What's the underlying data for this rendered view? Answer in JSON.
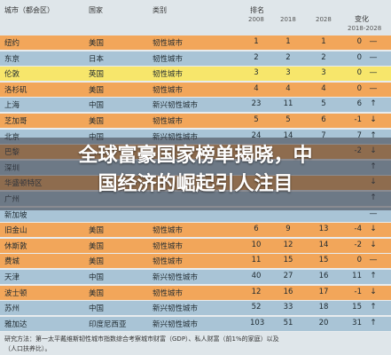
{
  "header": {
    "city": "城市（都会区）",
    "country": "国家",
    "type": "类别",
    "rank": "排名",
    "y2008": "2008",
    "y2018": "2018",
    "y2028": "2028",
    "change": "变化",
    "change_range": "2018-2028"
  },
  "colors": {
    "orange": "#f2a65a",
    "blue": "#a9c4d6",
    "yellow": "#f7e66b",
    "dark": "#555555"
  },
  "rows": [
    {
      "city": "纽约",
      "country": "美国",
      "type": "韧性城市",
      "r2008": "1",
      "r2018": "1",
      "r2028": "1",
      "chg": "0",
      "arrow": "—",
      "bg": "orange"
    },
    {
      "city": "东京",
      "country": "日本",
      "type": "韧性城市",
      "r2008": "2",
      "r2018": "2",
      "r2028": "2",
      "chg": "0",
      "arrow": "—",
      "bg": "blue"
    },
    {
      "city": "伦敦",
      "country": "英国",
      "type": "韧性城市",
      "r2008": "3",
      "r2018": "3",
      "r2028": "3",
      "chg": "0",
      "arrow": "—",
      "bg": "yellow"
    },
    {
      "city": "洛杉矶",
      "country": "美国",
      "type": "韧性城市",
      "r2008": "4",
      "r2018": "4",
      "r2028": "4",
      "chg": "0",
      "arrow": "—",
      "bg": "orange"
    },
    {
      "city": "上海",
      "country": "中国",
      "type": "新兴韧性城市",
      "r2008": "23",
      "r2018": "11",
      "r2028": "5",
      "chg": "6",
      "arrow": "↑",
      "bg": "blue"
    },
    {
      "city": "芝加哥",
      "country": "美国",
      "type": "韧性城市",
      "r2008": "5",
      "r2018": "5",
      "r2028": "6",
      "chg": "-1",
      "arrow": "↓",
      "bg": "orange"
    },
    {
      "city": "北京",
      "country": "中国",
      "type": "新兴韧性城市",
      "r2008": "24",
      "r2018": "14",
      "r2028": "7",
      "chg": "7",
      "arrow": "↑",
      "bg": "blue"
    },
    {
      "city": "巴黎",
      "country": "",
      "type": "",
      "r2008": "",
      "r2018": "",
      "r2028": "",
      "chg": "-2",
      "arrow": "↓",
      "bg": "orange"
    },
    {
      "city": "深圳",
      "country": "",
      "type": "",
      "r2008": "",
      "r2018": "",
      "r2028": "",
      "chg": "",
      "arrow": "↑",
      "bg": "blue"
    },
    {
      "city": "华盛顿特区",
      "country": "",
      "type": "",
      "r2008": "",
      "r2018": "",
      "r2028": "",
      "chg": "",
      "arrow": "↓",
      "bg": "orange"
    },
    {
      "city": "广州",
      "country": "",
      "type": "",
      "r2008": "",
      "r2018": "",
      "r2028": "",
      "chg": "",
      "arrow": "↑",
      "bg": "blue"
    },
    {
      "city": "新加坡",
      "country": "",
      "type": "",
      "r2008": "",
      "r2018": "",
      "r2028": "",
      "chg": "",
      "arrow": "—",
      "bg": "blue"
    },
    {
      "city": "旧金山",
      "country": "美国",
      "type": "韧性城市",
      "r2008": "6",
      "r2018": "9",
      "r2028": "13",
      "chg": "-4",
      "arrow": "↓",
      "bg": "orange"
    },
    {
      "city": "休斯敦",
      "country": "美国",
      "type": "韧性城市",
      "r2008": "10",
      "r2018": "12",
      "r2028": "14",
      "chg": "-2",
      "arrow": "↓",
      "bg": "orange"
    },
    {
      "city": "费城",
      "country": "美国",
      "type": "韧性城市",
      "r2008": "11",
      "r2018": "15",
      "r2028": "15",
      "chg": "0",
      "arrow": "—",
      "bg": "orange"
    },
    {
      "city": "天津",
      "country": "中国",
      "type": "新兴韧性城市",
      "r2008": "40",
      "r2018": "27",
      "r2028": "16",
      "chg": "11",
      "arrow": "↑",
      "bg": "blue"
    },
    {
      "city": "波士顿",
      "country": "美国",
      "type": "韧性城市",
      "r2008": "12",
      "r2018": "16",
      "r2028": "17",
      "chg": "-1",
      "arrow": "↓",
      "bg": "orange"
    },
    {
      "city": "苏州",
      "country": "中国",
      "type": "新兴韧性城市",
      "r2008": "52",
      "r2018": "33",
      "r2028": "18",
      "chg": "15",
      "arrow": "↑",
      "bg": "blue"
    },
    {
      "city": "雅加达",
      "country": "印度尼西亚",
      "type": "新兴韧性城市",
      "r2008": "103",
      "r2018": "51",
      "r2028": "20",
      "chg": "31",
      "arrow": "↑",
      "bg": "blue"
    }
  ],
  "headline": {
    "line1": "全球富豪国家榜单揭晓，中",
    "line2": "国经济的崛起引人注目"
  },
  "footer": {
    "text1": "研究方法：第一太平戴维斯韧性城市指数综合考察城市财富（GDP）、私人财富（前1%的家庭）以及",
    "text2": "（人口扶养比）。"
  }
}
